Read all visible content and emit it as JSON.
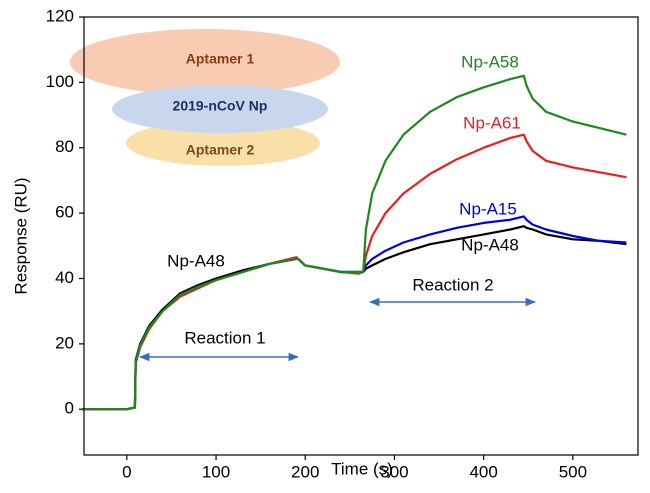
{
  "chart_data": {
    "type": "line",
    "x_label": "Time (s)",
    "y_label": "Response (RU)",
    "xlim": [
      -48,
      573
    ],
    "ylim": [
      -14,
      120
    ],
    "xticks": [
      0,
      100,
      200,
      300,
      400,
      500
    ],
    "yticks": [
      0,
      20,
      40,
      60,
      80,
      100,
      120
    ],
    "annotations": [
      "Reaction 1",
      "Reaction 2"
    ],
    "inset_labels": [
      "Aptamer 1",
      "2019-nCoV Np",
      "Aptamer 2"
    ],
    "x": [
      -50,
      0,
      9,
      10,
      15,
      25,
      40,
      60,
      80,
      100,
      130,
      160,
      190,
      192,
      200,
      220,
      240,
      260,
      265,
      268,
      275,
      290,
      310,
      340,
      370,
      400,
      430,
      445,
      448,
      455,
      470,
      500,
      530,
      560
    ],
    "series": [
      {
        "name": "Np-A48",
        "color": "#000000",
        "values": [
          0,
          0,
          0.5,
          15,
          20,
          25.5,
          30.5,
          35.5,
          38,
          40,
          42.5,
          44.5,
          46,
          46,
          44,
          43,
          42,
          42,
          42,
          43,
          44,
          46,
          48,
          50.5,
          52,
          53.5,
          55,
          56,
          55.5,
          55,
          53.5,
          52,
          51.5,
          50.5
        ]
      },
      {
        "name": "Np-A15",
        "color": "#0000ee",
        "values": [
          0,
          0,
          0.5,
          15,
          20,
          25,
          30,
          35,
          37.5,
          39.5,
          42,
          44.5,
          46,
          46,
          44,
          43,
          42,
          42,
          42,
          44,
          46,
          48.5,
          51,
          53.5,
          55.5,
          57,
          58,
          59,
          58,
          56.5,
          55,
          53,
          51.5,
          51
        ]
      },
      {
        "name": "Np-A61",
        "color": "#ee1c1c",
        "values": [
          0,
          0,
          0.5,
          14,
          19,
          24.5,
          30,
          34.5,
          37,
          39.5,
          42,
          44.5,
          46.5,
          46,
          44,
          43,
          42,
          41.5,
          42,
          47,
          53,
          60,
          66,
          72,
          76.5,
          80,
          83,
          84,
          82,
          79,
          76,
          74,
          72.5,
          71
        ]
      },
      {
        "name": "Np-A58",
        "color": "#1a8a1a",
        "values": [
          0,
          0,
          0.5,
          14.5,
          19.5,
          25,
          30,
          35,
          37.5,
          39.5,
          42,
          44.5,
          46,
          46,
          44,
          43,
          42,
          42,
          42,
          55,
          66,
          76,
          84,
          91,
          95.5,
          98.5,
          101,
          102,
          99,
          95,
          91,
          88,
          86,
          84
        ]
      }
    ]
  }
}
